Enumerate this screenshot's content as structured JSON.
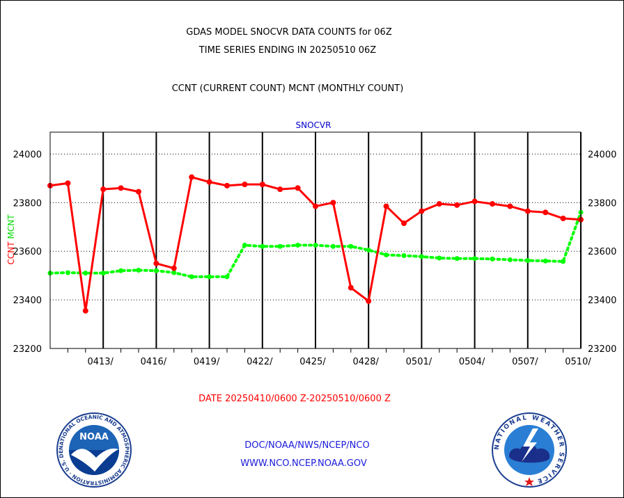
{
  "header": {
    "title_line1": "GDAS MODEL SNOCVR DATA COUNTS for 06Z",
    "title_line2": "TIME SERIES ENDING IN 20250510 06Z",
    "subtitle": "CCNT (CURRENT COUNT) MCNT (MONTHLY COUNT)"
  },
  "footer": {
    "date_range": "DATE 20250410/0600 Z-20250510/0600 Z",
    "org": "DOC/NOAA/NWS/NCEP/NCO",
    "url": "WWW.NCO.NCEP.NOAA.GOV"
  },
  "logos": {
    "noaa_text": "NOAA",
    "noaa_ring_text": "NATIONAL OCEANIC AND ATMOSPHERIC ADMINISTRATION · U.S. DEPARTMENT OF COMMERCE ·",
    "nws_ring_text": "NATIONAL WEATHER SERVICE"
  },
  "chart_data": {
    "type": "line",
    "title": "SNOCVR",
    "ylabel_left": [
      "CCNT",
      "MCNT"
    ],
    "ylim": [
      23200,
      24090
    ],
    "yticks": [
      23200,
      23400,
      23600,
      23800,
      24000
    ],
    "ytick_labels": [
      "23200",
      "23400",
      "23600",
      "23800",
      "24000"
    ],
    "xlim": [
      0,
      30.0
    ],
    "xtick_positions": [
      3,
      6,
      9,
      12,
      15,
      18,
      21,
      24,
      27,
      30
    ],
    "xtick_labels": [
      "0413/",
      "0416/",
      "0419/",
      "0422/",
      "0425/",
      "0428/",
      "0501/",
      "0504/",
      "0507/",
      "0510/"
    ],
    "minor_xtick_positions": [
      1,
      2,
      4,
      5,
      7,
      8,
      10,
      11,
      13,
      14,
      16,
      17,
      19,
      20,
      22,
      23,
      25,
      26,
      28,
      29
    ],
    "grid": true,
    "colors": {
      "ccnt": "#ff0000",
      "mcnt": "#00ff00",
      "title": "#0000cc"
    },
    "series": [
      {
        "name": "CCNT",
        "x": [
          0,
          1,
          2,
          3,
          4,
          5,
          6,
          7,
          8,
          9,
          10,
          11,
          12,
          13,
          14,
          15,
          16,
          17,
          18,
          19,
          20,
          21,
          22,
          23,
          24,
          25,
          26,
          27,
          28,
          29,
          30
        ],
        "values": [
          23870,
          23880,
          23355,
          23855,
          23860,
          23845,
          23550,
          23530,
          23905,
          23885,
          23870,
          23875,
          23875,
          23855,
          23860,
          23785,
          23800,
          23450,
          23395,
          23785,
          23715,
          23765,
          23795,
          23790,
          23805,
          23795,
          23785,
          23765,
          23760,
          23735,
          23730
        ]
      },
      {
        "name": "MCNT",
        "x": [
          0,
          1,
          2,
          3,
          4,
          5,
          6,
          7,
          8,
          9,
          10,
          11,
          12,
          13,
          14,
          15,
          16,
          17,
          18,
          19,
          20,
          21,
          22,
          23,
          24,
          25,
          26,
          27,
          28,
          29,
          30
        ],
        "values": [
          23510,
          23512,
          23510,
          23510,
          23520,
          23522,
          23520,
          23512,
          23495,
          23495,
          23495,
          23625,
          23620,
          23620,
          23625,
          23625,
          23620,
          23620,
          23605,
          23585,
          23582,
          23578,
          23572,
          23570,
          23570,
          23568,
          23565,
          23562,
          23560,
          23558,
          23760
        ]
      }
    ]
  }
}
